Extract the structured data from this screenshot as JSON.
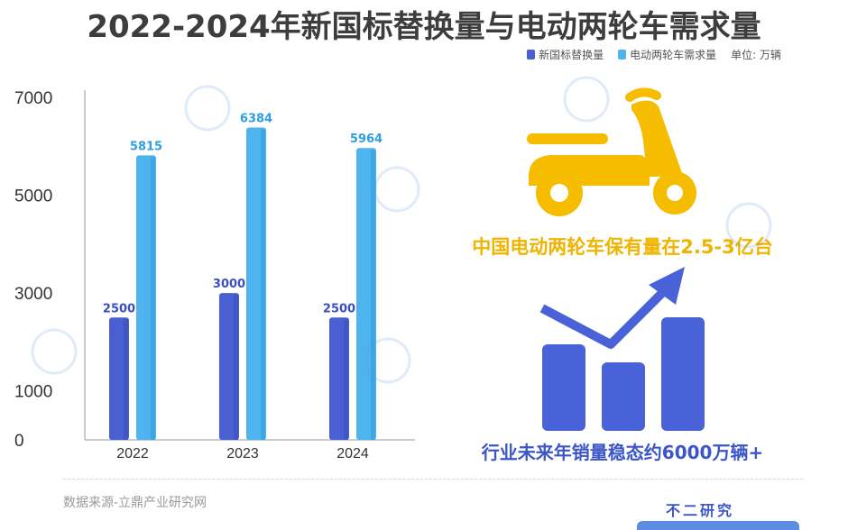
{
  "title": "2022-2024年新国标替换量与电动两轮车需求量",
  "legend": {
    "items": [
      {
        "label": "新国标替换量",
        "color": "#4a5fd1"
      },
      {
        "label": "电动两轮车需求量",
        "color": "#4fb4ee"
      }
    ],
    "unit": "单位: 万辆"
  },
  "chart_data": {
    "type": "bar",
    "categories": [
      "2022",
      "2023",
      "2024"
    ],
    "series": [
      {
        "name": "新国标替换量",
        "values": [
          2500,
          3000,
          2500
        ]
      },
      {
        "name": "电动两轮车需求量",
        "values": [
          5815,
          6384,
          5964
        ]
      }
    ],
    "yticks": [
      "0",
      "1000",
      "3000",
      "5000",
      "7000"
    ],
    "ylim": [
      0,
      7000
    ],
    "legend_position": "top-right",
    "grid": false
  },
  "infographic": {
    "headline_1": "中国电动两轮车保有量在2.5-3亿台",
    "headline_2": "行业未来年销量稳态约6000万辆+"
  },
  "source": "数据来源-立鼎产业研究网",
  "brand": "不二研究"
}
